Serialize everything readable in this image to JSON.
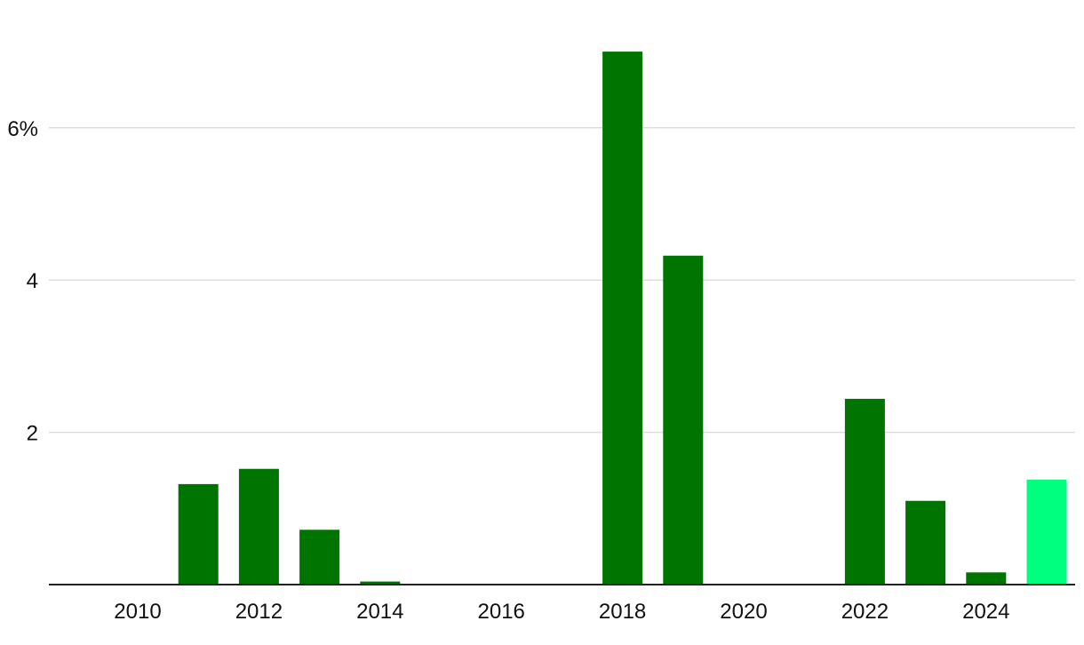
{
  "chart_data": {
    "type": "bar",
    "categories": [
      "2010",
      "2011",
      "2012",
      "2013",
      "2014",
      "2015",
      "2016",
      "2017",
      "2018",
      "2019",
      "2020",
      "2021",
      "2022",
      "2023",
      "2024",
      "2025"
    ],
    "values": [
      0,
      1.32,
      1.52,
      0.72,
      0.04,
      0,
      0,
      0,
      7.0,
      4.32,
      0,
      0,
      2.44,
      1.1,
      0.16,
      1.38
    ],
    "highlight_index": 15,
    "colors": {
      "bar": "#007400",
      "highlight": "#00ff7f",
      "grid": "#dddddd",
      "axis": "#222222"
    },
    "ylim": [
      0,
      7.0
    ],
    "y_ticks": [
      2,
      4,
      6
    ],
    "y_tick_labels": [
      "2",
      "4",
      "6%"
    ],
    "x_tick_labels": [
      "2010",
      "2012",
      "2014",
      "2016",
      "2018",
      "2020",
      "2022",
      "2024"
    ],
    "grid": true,
    "title": "",
    "xlabel": "",
    "ylabel": ""
  }
}
